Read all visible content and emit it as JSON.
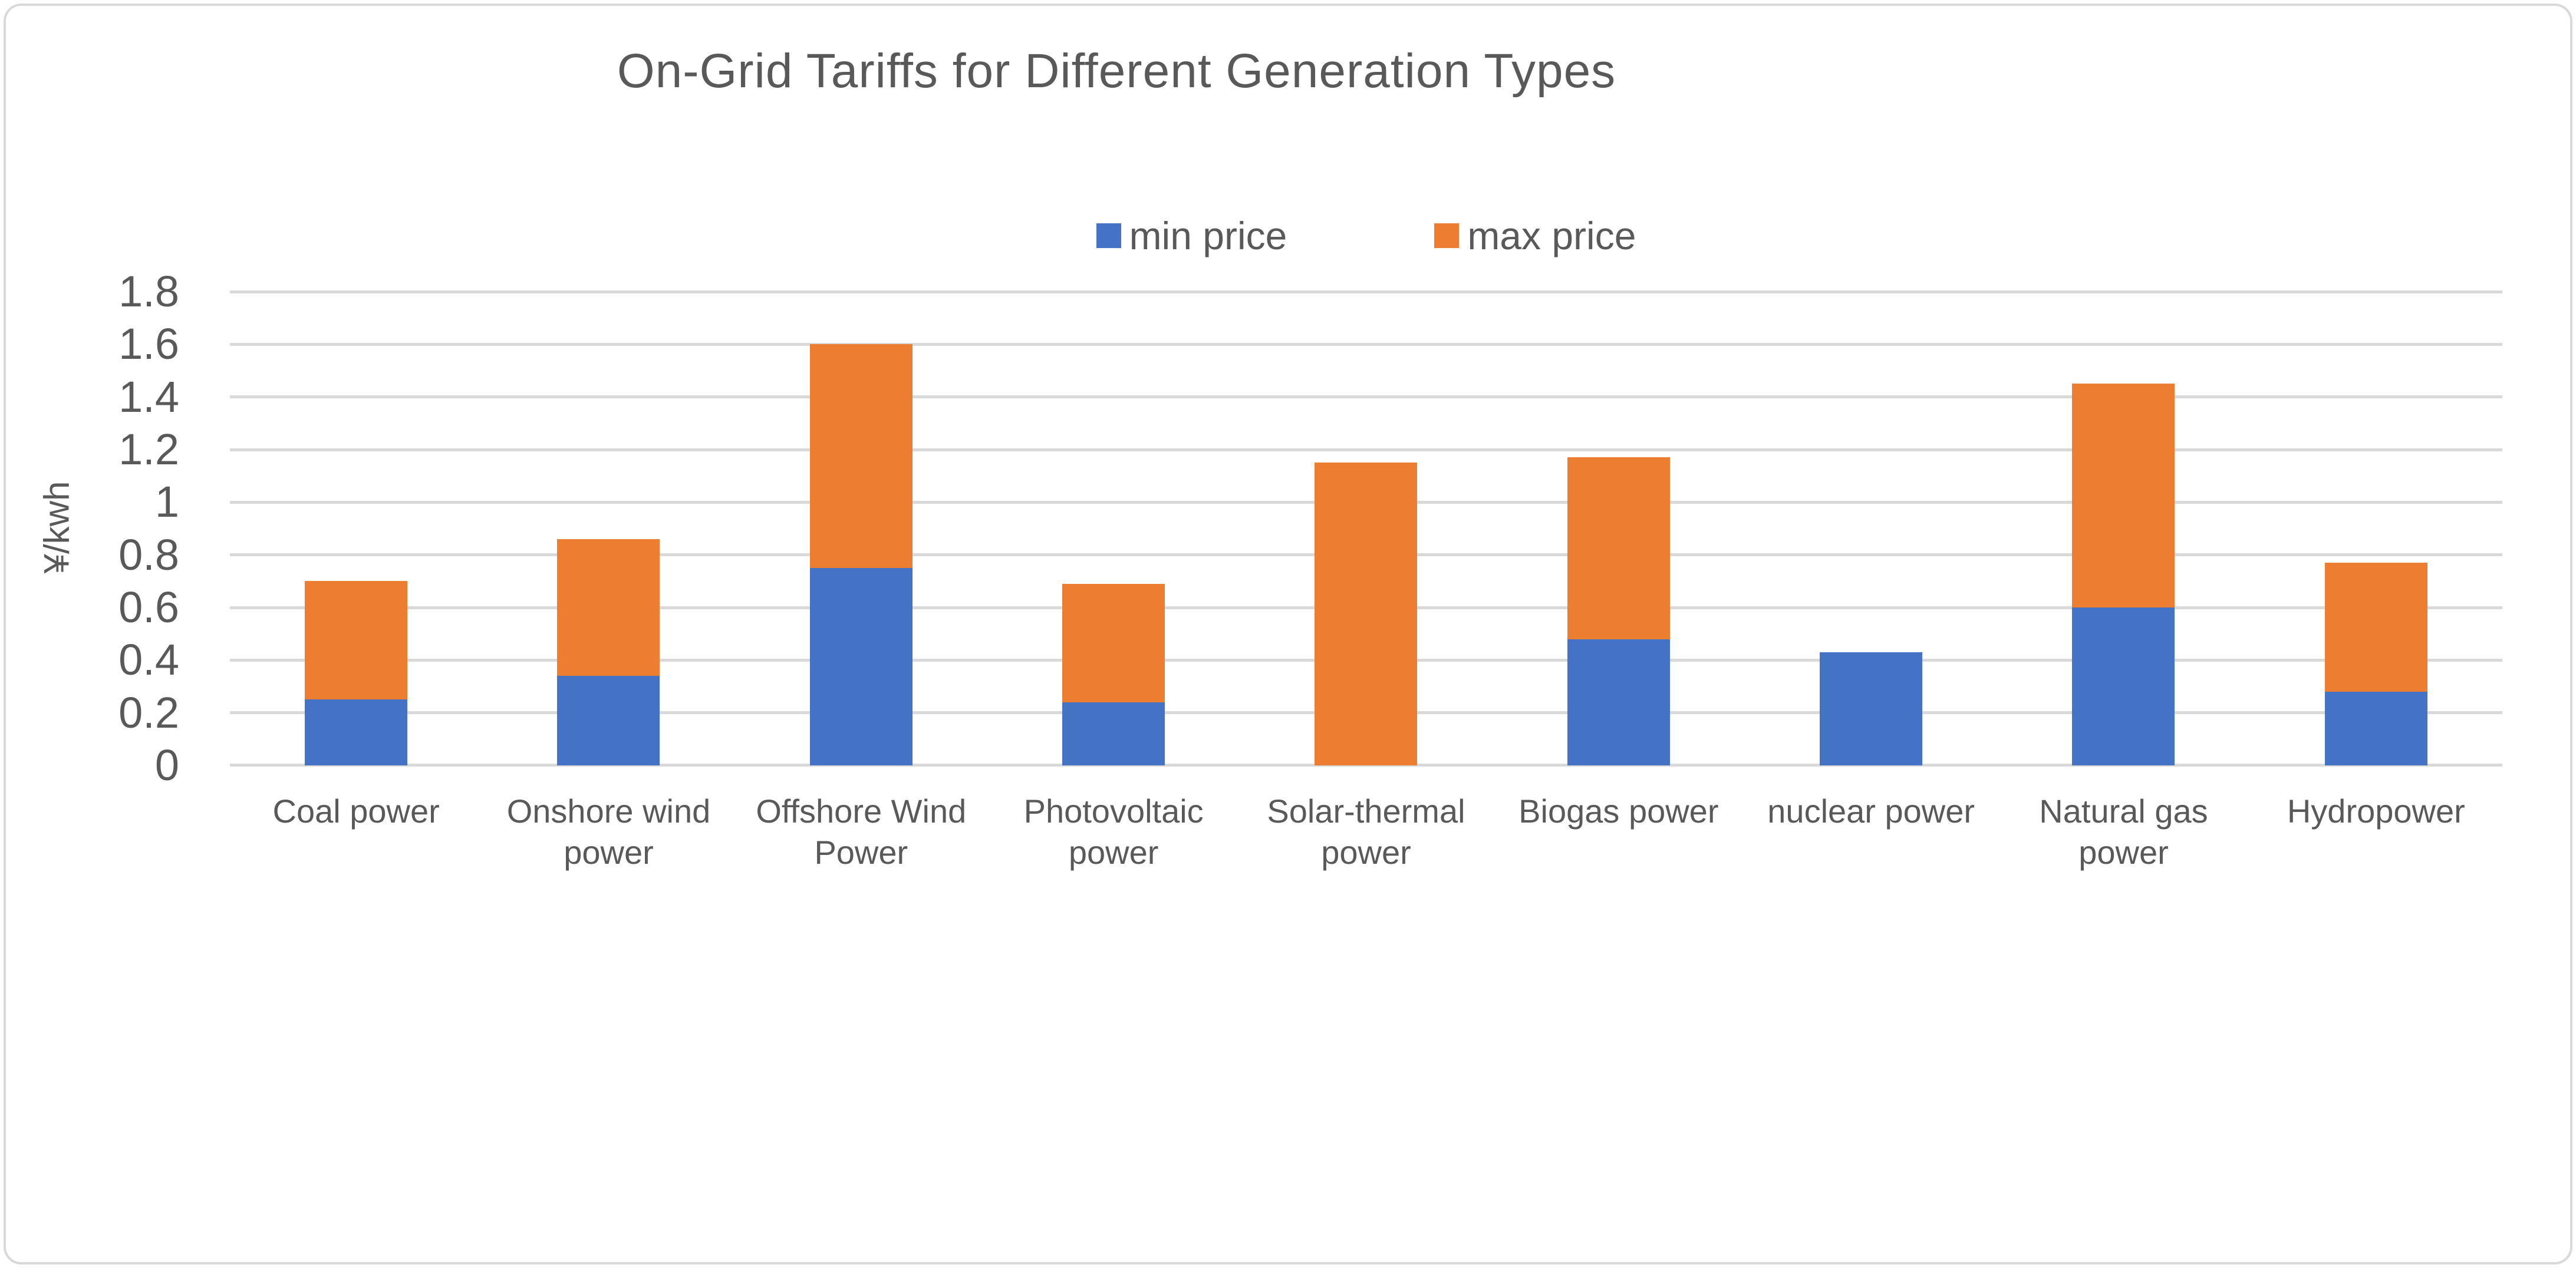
{
  "chart_data": {
    "type": "bar",
    "stacked": true,
    "title": "On-Grid Tariffs for Different Generation Types",
    "ylabel": "¥/kwh",
    "unit": "¥/kwh",
    "categories": [
      "Coal power",
      "Onshore wind power",
      "Offshore Wind Power",
      "Photovoltaic power",
      "Solar-thermal power",
      "Biogas power",
      "nuclear power",
      "Natural gas power",
      "Hydropower"
    ],
    "series": [
      {
        "name": "min price",
        "color": "#4472C4",
        "values": [
          0.25,
          0.34,
          0.75,
          0.24,
          0,
          0.48,
          0.43,
          0.6,
          0.28
        ]
      },
      {
        "name": "max price",
        "color": "#ED7D31",
        "values": [
          0.45,
          0.52,
          0.85,
          0.45,
          1.15,
          0.69,
          0,
          0.85,
          0.49
        ]
      }
    ],
    "stacked_totals": [
      0.7,
      0.86,
      1.6,
      0.69,
      1.15,
      1.17,
      0.43,
      1.45,
      0.77
    ],
    "ylim": [
      0,
      1.8
    ],
    "ytick_values": [
      0,
      0.2,
      0.4,
      0.6,
      0.8,
      1,
      1.2,
      1.4,
      1.6,
      1.8
    ],
    "ytick_labels": [
      "0",
      "0.2",
      "0.4",
      "0.6",
      "0.8",
      "1",
      "1.2",
      "1.4",
      "1.6",
      "1.8"
    ],
    "grid": true,
    "legend_position": "top-center"
  },
  "style": {
    "text_color": "#595959",
    "gridline_color": "#D9D9D9",
    "border_color": "#D9D9D9",
    "background": "#FFFFFF",
    "min_color": "#4472C4",
    "max_color": "#ED7D31"
  }
}
